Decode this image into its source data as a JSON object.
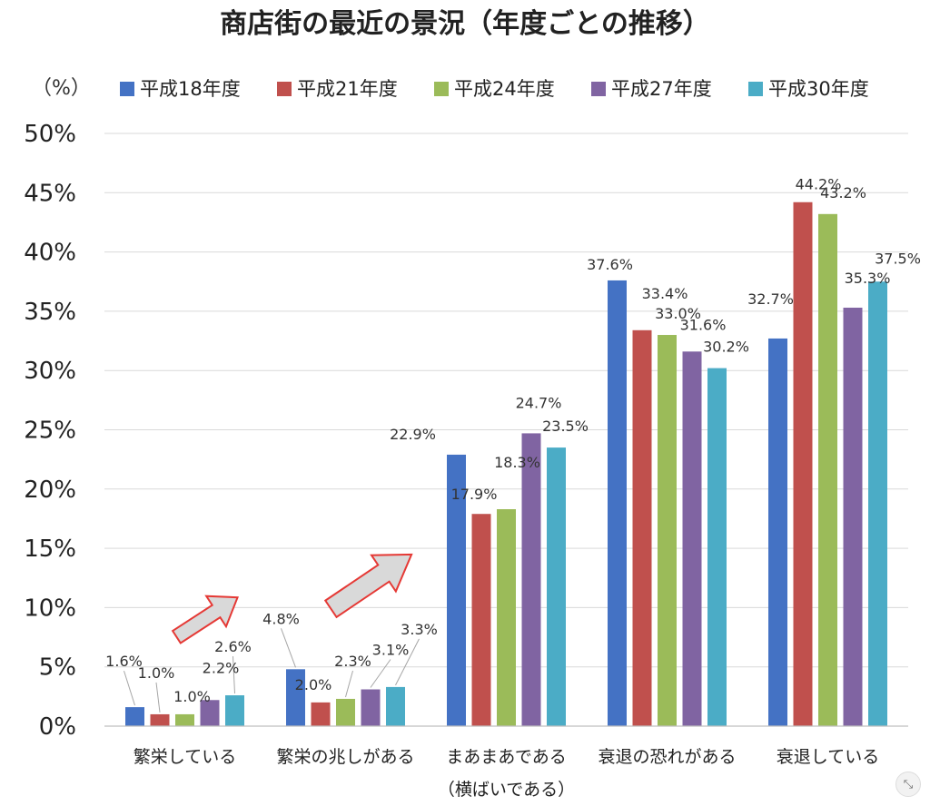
{
  "chart_data": {
    "type": "bar",
    "title": "商店街の最近の景況（年度ごとの推移）",
    "unit_label": "（%）",
    "ylim": [
      0,
      50
    ],
    "yticks": [
      0,
      5,
      10,
      15,
      20,
      25,
      30,
      35,
      40,
      45,
      50
    ],
    "ytick_suffix": "%",
    "grid": true,
    "legend_position": "top",
    "categories": [
      {
        "line1": "繁栄している",
        "line2": ""
      },
      {
        "line1": "繁栄の兆しがある",
        "line2": ""
      },
      {
        "line1": "まあまあである",
        "line2": "（横ばいである）"
      },
      {
        "line1": "衰退の恐れがある",
        "line2": ""
      },
      {
        "line1": "衰退している",
        "line2": ""
      }
    ],
    "series": [
      {
        "name": "平成18年度",
        "color": "#4472c4",
        "values": [
          1.6,
          4.8,
          22.9,
          37.6,
          32.7
        ],
        "labels": [
          "1.6%",
          "4.8%",
          "22.9%",
          "37.6%",
          "32.7%"
        ]
      },
      {
        "name": "平成21年度",
        "color": "#c0504d",
        "values": [
          1.0,
          2.0,
          17.9,
          33.4,
          44.2
        ],
        "labels": [
          "1.0%",
          "2.0%",
          "17.9%",
          "33.4%",
          "44.2%"
        ]
      },
      {
        "name": "平成24年度",
        "color": "#9bbb59",
        "values": [
          1.0,
          2.3,
          18.3,
          33.0,
          43.2
        ],
        "labels": [
          "1.0%",
          "2.3%",
          "18.3%",
          "33.0%",
          "43.2%"
        ]
      },
      {
        "name": "平成27年度",
        "color": "#8064a2",
        "values": [
          2.2,
          3.1,
          24.7,
          31.6,
          35.3
        ],
        "labels": [
          "2.2%",
          "3.1%",
          "24.7%",
          "31.6%",
          "35.3%"
        ]
      },
      {
        "name": "平成30年度",
        "color": "#4bacc6",
        "values": [
          2.6,
          3.3,
          23.5,
          30.2,
          37.5
        ],
        "labels": [
          "2.6%",
          "3.3%",
          "23.5%",
          "30.2%",
          "37.5%"
        ]
      }
    ]
  },
  "ui": {
    "corner_button_icon": "collapse-icon",
    "corner_button_glyph": "⤡"
  }
}
